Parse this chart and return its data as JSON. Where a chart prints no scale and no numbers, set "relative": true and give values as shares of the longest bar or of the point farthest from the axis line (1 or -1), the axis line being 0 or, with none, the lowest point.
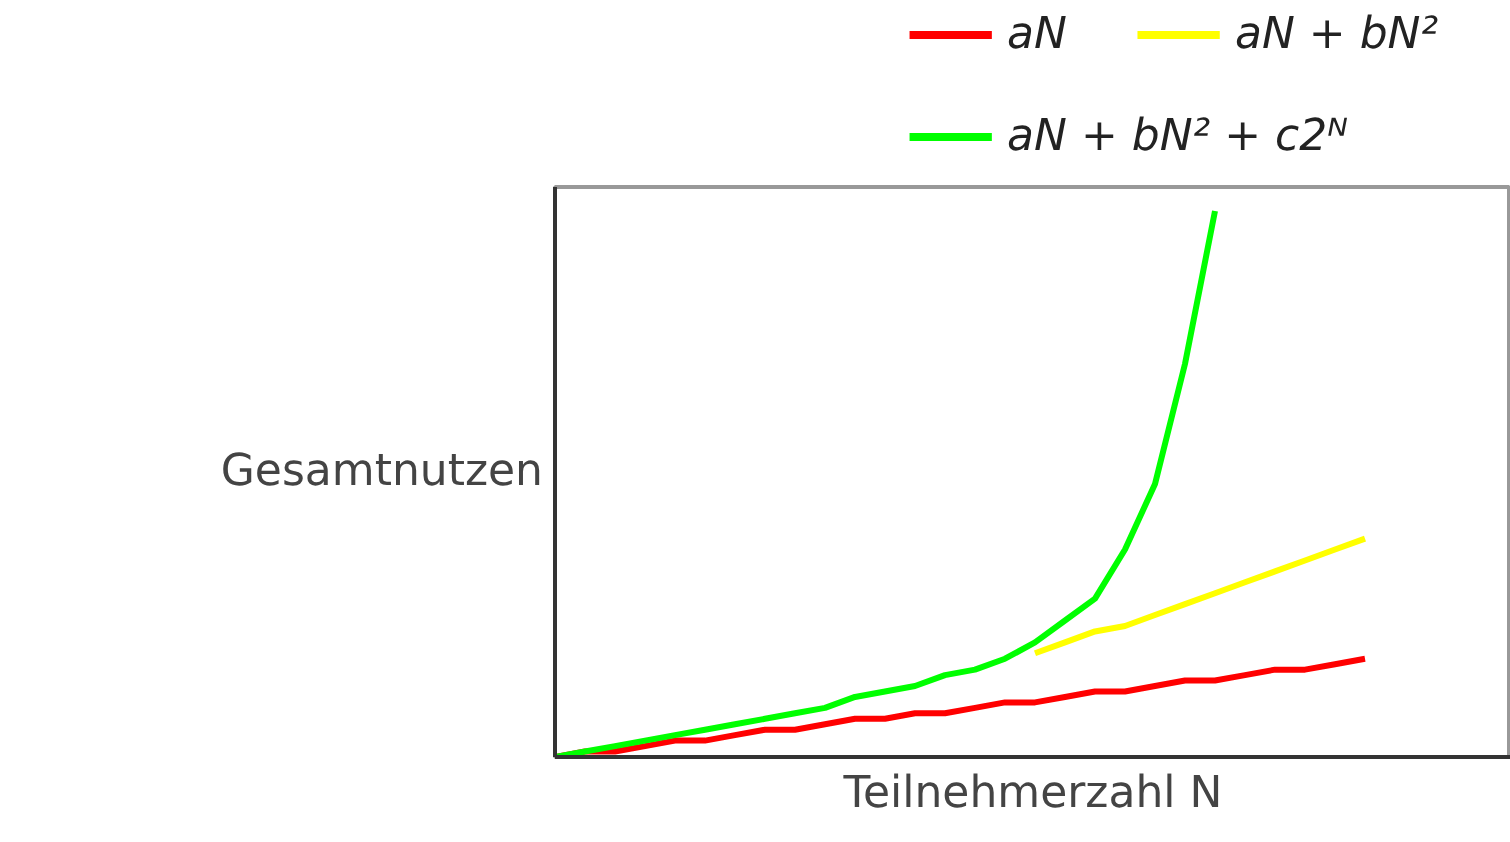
{
  "chart_data": {
    "type": "line",
    "relative": true,
    "xlabel": "Teilnehmerzahl N",
    "ylabel": "Gesamtnutzen",
    "legend": "top",
    "grid": false,
    "marker": "none",
    "line_style": "solid",
    "categories": [
      null,
      null,
      null,
      null,
      null,
      null,
      null,
      null,
      null,
      null,
      null,
      null,
      null,
      null,
      null,
      null,
      null,
      null,
      null,
      null,
      null,
      null,
      null,
      null,
      null,
      null,
      null,
      null
    ],
    "series": [
      {
        "name": "aN",
        "color": "#ff0000",
        "values": [
          0,
          0.01,
          0.01,
          0.02,
          0.03,
          0.03,
          0.04,
          0.05,
          0.05,
          0.06,
          0.07,
          0.07,
          0.08,
          0.08,
          0.09,
          0.1,
          0.1,
          0.11,
          0.12,
          0.12,
          0.13,
          0.14,
          0.14,
          0.15,
          0.16,
          0.16,
          0.17,
          0.18
        ]
      },
      {
        "name": "aN + bN²",
        "color": "#ffff00",
        "values": [
          null,
          null,
          null,
          null,
          null,
          null,
          null,
          null,
          null,
          null,
          null,
          null,
          null,
          null,
          null,
          null,
          0.19,
          0.21,
          0.23,
          0.24,
          0.26,
          0.28,
          0.3,
          0.32,
          0.34,
          0.36,
          0.38,
          0.4
        ]
      },
      {
        "name": "aN + bN² + c2ᴺ",
        "color": "#00ff00",
        "values": [
          0,
          0.01,
          0.02,
          0.03,
          0.04,
          0.05,
          0.06,
          0.07,
          0.08,
          0.09,
          0.11,
          0.12,
          0.13,
          0.15,
          0.16,
          0.18,
          0.21,
          0.25,
          0.29,
          0.38,
          0.5,
          0.72,
          1.0,
          null,
          null,
          null,
          null,
          null
        ]
      }
    ]
  }
}
